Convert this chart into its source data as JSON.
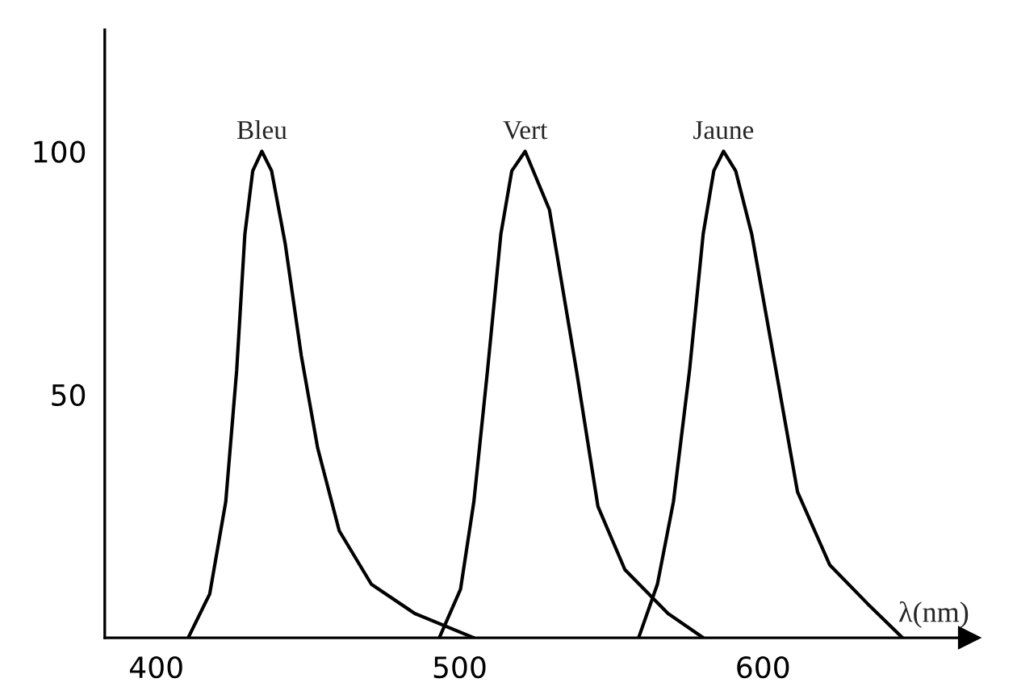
{
  "chart_data": {
    "type": "line",
    "xlabel": "λ(nm)",
    "xlim": [
      383,
      668
    ],
    "ylim": [
      0,
      125
    ],
    "xticks": [
      400,
      500,
      600
    ],
    "yticks": [
      50,
      100
    ],
    "grid": false,
    "legend": false,
    "marker": "none",
    "line_style": "solid",
    "series": [
      {
        "color": "#000000",
        "x": [
          410.5,
          417.6,
          422.9,
          426.5,
          429.2,
          431.8,
          434.8,
          438,
          442.5,
          447.8,
          453.2,
          460.3,
          470.9,
          485.2,
          504.7
        ],
        "values": [
          0,
          9,
          28,
          55,
          83,
          96,
          100,
          96,
          81,
          58,
          39,
          22,
          11,
          5,
          0
        ]
      },
      {
        "color": "#000000",
        "x": [
          493.3,
          500.3,
          504.7,
          509.2,
          513.6,
          517.2,
          521.6,
          529.6,
          538.5,
          545.6,
          554.5,
          568.7,
          580.3
        ],
        "values": [
          0,
          10,
          28,
          55,
          83,
          96,
          100,
          88,
          55,
          27,
          14,
          5,
          0
        ]
      },
      {
        "color": "#000000",
        "x": [
          559,
          565.2,
          570.5,
          575.8,
          580.3,
          583.8,
          587,
          591,
          596.3,
          604.3,
          611.4,
          622,
          634.5,
          646
        ],
        "values": [
          0,
          11,
          28,
          55,
          83,
          96,
          100,
          96,
          83,
          55,
          30,
          15,
          7,
          0
        ]
      }
    ],
    "annotations": [
      {
        "text": "Bleu",
        "x": 434.8,
        "y": 100
      },
      {
        "text": "Vert",
        "x": 521.6,
        "y": 100
      },
      {
        "text": "Jaune",
        "x": 587,
        "y": 100
      }
    ]
  }
}
